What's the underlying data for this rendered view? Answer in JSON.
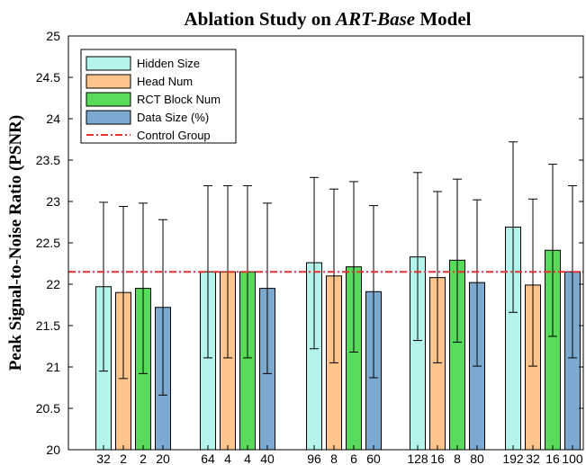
{
  "chart_data": {
    "type": "bar",
    "title_parts": [
      "Ablation Study on ",
      "ART-Base",
      " Model"
    ],
    "ylabel": "Peak Signal-to-Noise Ratio (PSNR)",
    "xlabel": "",
    "ylim": [
      20,
      25
    ],
    "yticks": [
      "20",
      "20.5",
      "21",
      "21.5",
      "22",
      "22.5",
      "23",
      "23.5",
      "24",
      "24.5",
      "25"
    ],
    "legend_position": "top-left",
    "series": [
      {
        "name": "Hidden Size",
        "color": "#b3f3ec",
        "labels": [
          "32",
          "64",
          "96",
          "128",
          "192"
        ],
        "values": [
          21.97,
          22.15,
          22.26,
          22.33,
          22.69
        ],
        "err_low": [
          20.95,
          21.11,
          21.22,
          21.32,
          21.66
        ],
        "err_high": [
          22.99,
          23.19,
          23.29,
          23.35,
          23.72
        ]
      },
      {
        "name": "Head Num",
        "color": "#fdc48b",
        "labels": [
          "2",
          "4",
          "8",
          "16",
          "32"
        ],
        "values": [
          21.9,
          22.15,
          22.1,
          22.08,
          21.99
        ],
        "err_low": [
          20.86,
          21.11,
          21.05,
          21.05,
          21.01
        ],
        "err_high": [
          22.94,
          23.19,
          23.15,
          23.12,
          23.03
        ]
      },
      {
        "name": "RCT Block Num",
        "color": "#58db5a",
        "labels": [
          "2",
          "4",
          "6",
          "8",
          "16"
        ],
        "values": [
          21.95,
          22.15,
          22.21,
          22.29,
          22.41
        ],
        "err_low": [
          20.92,
          21.11,
          21.18,
          21.3,
          21.37
        ],
        "err_high": [
          22.98,
          23.19,
          23.24,
          23.27,
          23.45
        ]
      },
      {
        "name": "Data Size (%)",
        "color": "#7ba9d0",
        "labels": [
          "20",
          "40",
          "60",
          "80",
          "100"
        ],
        "values": [
          21.72,
          21.95,
          21.91,
          22.02,
          22.15
        ],
        "err_low": [
          20.66,
          20.92,
          20.87,
          21.01,
          21.11
        ],
        "err_high": [
          22.78,
          22.98,
          22.95,
          23.02,
          23.19
        ]
      }
    ],
    "control": {
      "name": "Control Group",
      "value": 22.15,
      "color": "#e8312f"
    }
  }
}
